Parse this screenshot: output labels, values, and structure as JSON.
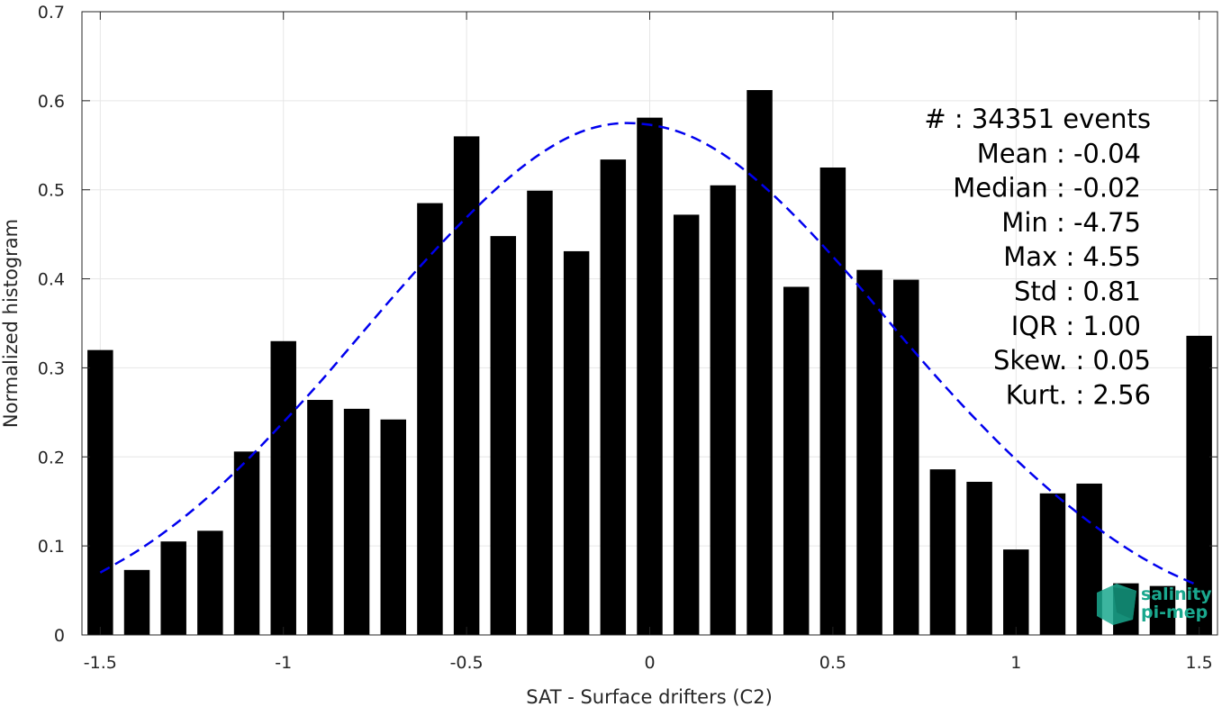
{
  "chart_data": {
    "type": "bar",
    "xlabel": "SAT - Surface drifters (C2)",
    "ylabel": "Normalized histogram",
    "xlim": [
      -1.55,
      1.55
    ],
    "ylim": [
      0,
      0.7
    ],
    "xticks": [
      -1.5,
      -1,
      -0.5,
      0,
      0.5,
      1,
      1.5
    ],
    "xtick_labels": [
      "-1.5",
      "-1",
      "-0.5",
      "0",
      "0.5",
      "1",
      "1.5"
    ],
    "yticks": [
      0,
      0.1,
      0.2,
      0.3,
      0.4,
      0.5,
      0.6,
      0.7
    ],
    "ytick_labels": [
      "0",
      "0.1",
      "0.2",
      "0.3",
      "0.4",
      "0.5",
      "0.6",
      "0.7"
    ],
    "grid": true,
    "bar_width": 0.07,
    "bar_color": "#000000",
    "bars": {
      "x": [
        -1.5,
        -1.4,
        -1.3,
        -1.2,
        -1.1,
        -1.0,
        -0.9,
        -0.8,
        -0.7,
        -0.6,
        -0.5,
        -0.4,
        -0.3,
        -0.2,
        -0.1,
        0.0,
        0.1,
        0.2,
        0.3,
        0.4,
        0.5,
        0.6,
        0.7,
        0.8,
        0.9,
        1.0,
        1.1,
        1.2,
        1.3,
        1.4,
        1.5
      ],
      "values": [
        0.32,
        0.073,
        0.105,
        0.117,
        0.206,
        0.33,
        0.264,
        0.254,
        0.242,
        0.485,
        0.56,
        0.448,
        0.499,
        0.431,
        0.534,
        0.581,
        0.472,
        0.505,
        0.612,
        0.391,
        0.525,
        0.41,
        0.399,
        0.186,
        0.172,
        0.096,
        0.159,
        0.17,
        0.058,
        0.055,
        0.336
      ]
    },
    "fit_curve": {
      "style": "dashed",
      "color": "#0000ee",
      "x": [
        -1.5,
        -1.4,
        -1.3,
        -1.2,
        -1.1,
        -1.0,
        -0.9,
        -0.8,
        -0.7,
        -0.6,
        -0.5,
        -0.4,
        -0.3,
        -0.2,
        -0.1,
        0.0,
        0.1,
        0.2,
        0.3,
        0.4,
        0.5,
        0.6,
        0.7,
        0.8,
        0.9,
        1.0,
        1.1,
        1.2,
        1.3,
        1.4,
        1.5
      ],
      "y": [
        0.07,
        0.094,
        0.123,
        0.157,
        0.196,
        0.239,
        0.284,
        0.332,
        0.38,
        0.426,
        0.469,
        0.508,
        0.54,
        0.563,
        0.574,
        0.573,
        0.562,
        0.54,
        0.508,
        0.469,
        0.425,
        0.378,
        0.329,
        0.282,
        0.238,
        0.197,
        0.16,
        0.127,
        0.098,
        0.074,
        0.055
      ]
    },
    "annotations": [
      "#  : 34351 events",
      "Mean : -0.04",
      "Median : -0.02",
      "Min : -4.75",
      "Max : 4.55",
      "Std : 0.81",
      "IQR : 1.00",
      "Skew. : 0.05",
      "Kurt. : 2.56"
    ]
  },
  "logo": {
    "line1": "salinity",
    "line2": "pi-mep",
    "color": "#1aa88e"
  }
}
